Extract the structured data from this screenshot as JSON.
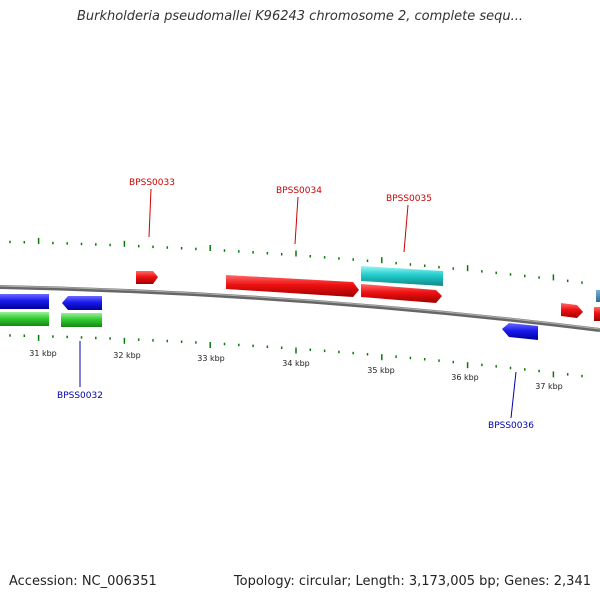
{
  "title": "Burkholderia pseudomallei K96243 chromosome 2, complete sequ...",
  "footer": {
    "accession": "Accession: NC_006351",
    "summary": "Topology: circular; Length: 3,173,005 bp; Genes: 2,341"
  },
  "ruler": {
    "labels": [
      "31 kbp",
      "32 kbp",
      "33 kbp",
      "34 kbp",
      "35 kbp",
      "36 kbp",
      "37 kbp"
    ]
  },
  "labels": [
    {
      "text": "BPSS0033",
      "color": "#cc0000"
    },
    {
      "text": "BPSS0034",
      "color": "#cc0000"
    },
    {
      "text": "BPSS0035",
      "color": "#cc0000"
    },
    {
      "text": "BPSS0032",
      "color": "#0000aa"
    },
    {
      "text": "BPSS0036",
      "color": "#0000aa"
    }
  ],
  "colors": {
    "forward_cds": "#ee1111",
    "reverse_cds": "#1a1aee",
    "rna": "#33cc33",
    "misc": "#22cccc",
    "backbone": "#808080",
    "ticks": "#0a7a0a"
  }
}
